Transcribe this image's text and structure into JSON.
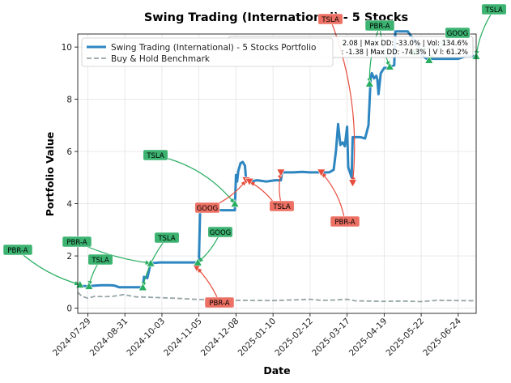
{
  "chart_data": {
    "type": "line",
    "title": "Swing Trading (International) - 5 Stocks",
    "xlabel": "Date",
    "ylabel": "Portfolio Value",
    "x_ticks": [
      "2024-07-29",
      "2024-08-31",
      "2024-10-03",
      "2024-11-05",
      "2024-12-08",
      "2025-01-10",
      "2025-02-12",
      "2025-03-17",
      "2025-04-19",
      "2025-05-22",
      "2025-06-24"
    ],
    "x_range": [
      "2024-07-20",
      "2025-07-10"
    ],
    "y_ticks": [
      0,
      2,
      4,
      6,
      8,
      10
    ],
    "ylim": [
      -0.2,
      10.5
    ],
    "grid": true,
    "legend_position": "top-left",
    "stats_lines": [
      "2.08 | Max DD: -33.0% | Vol: 134.6%",
      ": -1.38 | Max DD: -74.3% | V  l: 61.2%"
    ],
    "series": [
      {
        "name": "Swing Trading (International) - 5 Stocks Portfolio",
        "color": "#2e86c1",
        "points": [
          [
            "2024-07-20",
            0.9
          ],
          [
            "2024-07-24",
            0.85
          ],
          [
            "2024-07-29",
            0.84
          ],
          [
            "2024-08-04",
            0.86
          ],
          [
            "2024-08-10",
            0.88
          ],
          [
            "2024-08-18",
            0.88
          ],
          [
            "2024-08-22",
            0.86
          ],
          [
            "2024-08-26",
            0.8
          ],
          [
            "2024-09-10",
            0.8
          ],
          [
            "2024-09-16",
            0.8
          ],
          [
            "2024-09-17",
            1.2
          ],
          [
            "2024-09-20",
            1.15
          ],
          [
            "2024-09-23",
            1.72
          ],
          [
            "2024-10-01",
            1.75
          ],
          [
            "2024-10-20",
            1.75
          ],
          [
            "2024-11-03",
            1.75
          ],
          [
            "2024-11-04",
            1.55
          ],
          [
            "2024-11-05",
            1.9
          ],
          [
            "2024-11-06",
            3.75
          ],
          [
            "2024-11-15",
            3.78
          ],
          [
            "2024-11-20",
            3.75
          ],
          [
            "2024-12-07",
            3.75
          ],
          [
            "2024-12-08",
            5.1
          ],
          [
            "2024-12-09",
            4.85
          ],
          [
            "2024-12-10",
            5.25
          ],
          [
            "2024-12-12",
            5.55
          ],
          [
            "2024-12-14",
            5.6
          ],
          [
            "2024-12-16",
            5.45
          ],
          [
            "2024-12-17",
            4.9
          ],
          [
            "2024-12-20",
            4.85
          ],
          [
            "2024-12-27",
            4.9
          ],
          [
            "2025-01-04",
            4.85
          ],
          [
            "2025-01-12",
            4.9
          ],
          [
            "2025-01-17",
            4.9
          ],
          [
            "2025-01-18",
            5.2
          ],
          [
            "2025-01-28",
            5.2
          ],
          [
            "2025-02-05",
            5.22
          ],
          [
            "2025-02-12",
            5.2
          ],
          [
            "2025-02-20",
            5.2
          ],
          [
            "2025-03-01",
            5.2
          ],
          [
            "2025-03-05",
            5.3
          ],
          [
            "2025-03-07",
            6.0
          ],
          [
            "2025-03-09",
            7.05
          ],
          [
            "2025-03-11",
            6.25
          ],
          [
            "2025-03-13",
            6.35
          ],
          [
            "2025-03-15",
            6.2
          ],
          [
            "2025-03-17",
            6.95
          ],
          [
            "2025-03-18",
            5.4
          ],
          [
            "2025-03-21",
            5.0
          ],
          [
            "2025-03-22",
            6.55
          ],
          [
            "2025-03-29",
            6.55
          ],
          [
            "2025-04-02",
            6.5
          ],
          [
            "2025-04-05",
            7.0
          ],
          [
            "2025-04-07",
            8.8
          ],
          [
            "2025-04-08",
            9.0
          ],
          [
            "2025-04-10",
            8.8
          ],
          [
            "2025-04-12",
            8.9
          ],
          [
            "2025-04-13",
            8.75
          ],
          [
            "2025-04-14",
            8.2
          ],
          [
            "2025-04-16",
            9.0
          ],
          [
            "2025-04-19",
            9.2
          ],
          [
            "2025-04-22",
            9.2
          ],
          [
            "2025-04-24",
            9.25
          ],
          [
            "2025-04-28",
            9.3
          ],
          [
            "2025-04-29",
            10.6
          ],
          [
            "2025-05-10",
            10.6
          ],
          [
            "2025-05-20",
            10.0
          ],
          [
            "2025-05-22",
            9.7
          ],
          [
            "2025-05-27",
            9.55
          ],
          [
            "2025-06-10",
            9.55
          ],
          [
            "2025-06-24",
            9.55
          ],
          [
            "2025-07-01",
            9.65
          ],
          [
            "2025-07-10",
            9.65
          ]
        ]
      },
      {
        "name": "Buy & Hold Benchmark",
        "color": "#95a5a6",
        "points": [
          [
            "2024-07-20",
            0.6
          ],
          [
            "2024-07-24",
            0.45
          ],
          [
            "2024-07-29",
            0.38
          ],
          [
            "2024-08-04",
            0.45
          ],
          [
            "2024-08-12",
            0.44
          ],
          [
            "2024-08-20",
            0.45
          ],
          [
            "2024-08-30",
            0.52
          ],
          [
            "2024-09-10",
            0.43
          ],
          [
            "2024-09-20",
            0.42
          ],
          [
            "2024-10-03",
            0.4
          ],
          [
            "2024-10-15",
            0.38
          ],
          [
            "2024-11-05",
            0.33
          ],
          [
            "2024-11-20",
            0.34
          ],
          [
            "2024-12-08",
            0.3
          ],
          [
            "2025-01-10",
            0.29
          ],
          [
            "2025-02-01",
            0.32
          ],
          [
            "2025-02-12",
            0.34
          ],
          [
            "2025-02-22",
            0.3
          ],
          [
            "2025-03-05",
            0.31
          ],
          [
            "2025-03-17",
            0.34
          ],
          [
            "2025-03-24",
            0.28
          ],
          [
            "2025-04-05",
            0.27
          ],
          [
            "2025-04-19",
            0.26
          ],
          [
            "2025-05-05",
            0.27
          ],
          [
            "2025-05-22",
            0.25
          ],
          [
            "2025-06-05",
            0.3
          ],
          [
            "2025-06-24",
            0.29
          ],
          [
            "2025-07-10",
            0.28
          ]
        ]
      }
    ],
    "signals": [
      {
        "label": "PBR-A",
        "type": "buy",
        "date": "2024-07-22",
        "value": 0.9
      },
      {
        "label": "TSLA",
        "type": "buy",
        "date": "2024-07-30",
        "value": 0.84
      },
      {
        "label": "PBR-A",
        "type": "buy",
        "date": "2024-09-23",
        "value": 1.72
      },
      {
        "label": "TSLA",
        "type": "buy",
        "date": "2024-09-16",
        "value": 0.8
      },
      {
        "label": "PBR-A",
        "type": "sell",
        "date": "2024-11-03",
        "value": 1.55
      },
      {
        "label": "GOOG",
        "type": "buy",
        "date": "2024-11-04",
        "value": 1.75
      },
      {
        "label": "TSLA",
        "type": "buy",
        "date": "2024-12-07",
        "value": 4.0
      },
      {
        "label": "GOOG",
        "type": "sell",
        "date": "2024-12-17",
        "value": 4.9
      },
      {
        "label": "TSLA",
        "type": "sell",
        "date": "2025-01-17",
        "value": 5.2
      },
      {
        "label": "GOOG",
        "type": "sell",
        "date": "2024-12-20",
        "value": 4.85
      },
      {
        "label": "PBR-A",
        "type": "sell",
        "date": "2025-02-22",
        "value": 5.2
      },
      {
        "label": "TSLA",
        "type": "sell",
        "date": "2025-03-22",
        "value": 4.8
      },
      {
        "label": "PBR-A",
        "type": "buy",
        "date": "2025-04-06",
        "value": 8.6
      },
      {
        "label": "PBR-A",
        "type": "buy",
        "date": "2025-04-24",
        "value": 9.25
      },
      {
        "label": "GOOG",
        "type": "buy",
        "date": "2025-05-15",
        "value": 9.8
      },
      {
        "label": "GOOG",
        "type": "buy",
        "date": "2025-05-29",
        "value": 9.5
      },
      {
        "label": "TSLA",
        "type": "buy",
        "date": "2025-07-10",
        "value": 9.65
      }
    ]
  }
}
